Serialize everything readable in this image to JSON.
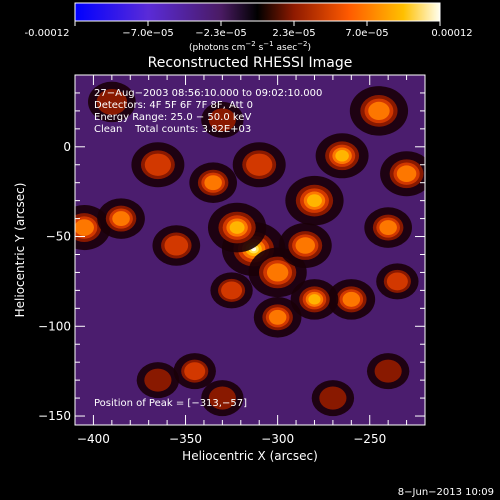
{
  "colorbar": {
    "tick_labels": [
      "-0.00012",
      "−7.0e−05",
      "−2.3e−05",
      "2.3e−05",
      "7.0e−05",
      "0.00012"
    ],
    "unit_parts": [
      "(photons cm",
      "−2",
      " s",
      "−1",
      " asec",
      "−2",
      ")"
    ]
  },
  "title": "Reconstructed RHESSI Image",
  "annotations": {
    "time_range": "27−Aug−2003 08:56:10.000 to 09:02:10.000",
    "detectors": "Detectors: 4F 5F 6F 7F 8F, Att 0",
    "energy_range": "Energy Range: 25.0 − 50.0 keV",
    "clean": "Clean    Total counts: 3.82E+03",
    "peak_position": "Position of Peak = [−313,−57]"
  },
  "axes": {
    "xlabel": "Heliocentric X (arcsec)",
    "ylabel": "Heliocentric Y (arcsec)",
    "x_tick_labels": [
      "−400",
      "−350",
      "−300",
      "−250"
    ],
    "y_tick_labels": [
      "0",
      "−50",
      "−100",
      "−150"
    ],
    "x_ticks": [
      -400,
      -350,
      -300,
      -250
    ],
    "y_ticks": [
      0,
      -50,
      -100,
      -150
    ],
    "x_range": [
      -410,
      -220
    ],
    "y_range": [
      -155,
      40
    ]
  },
  "footer_date": "8−Jun−2013 10:09",
  "image_blobs": [
    {
      "x": -313,
      "y": -57,
      "s": 1.0,
      "r": 12
    },
    {
      "x": -322,
      "y": -45,
      "s": 0.65,
      "r": 11
    },
    {
      "x": -300,
      "y": -70,
      "s": 0.55,
      "r": 11
    },
    {
      "x": -285,
      "y": -55,
      "s": 0.55,
      "r": 10
    },
    {
      "x": -280,
      "y": -30,
      "s": 0.7,
      "r": 11
    },
    {
      "x": -265,
      "y": -5,
      "s": 0.65,
      "r": 10
    },
    {
      "x": -245,
      "y": 20,
      "s": 0.6,
      "r": 11
    },
    {
      "x": -230,
      "y": -15,
      "s": 0.55,
      "r": 10
    },
    {
      "x": -240,
      "y": -45,
      "s": 0.5,
      "r": 9
    },
    {
      "x": -260,
      "y": -85,
      "s": 0.55,
      "r": 9
    },
    {
      "x": -280,
      "y": -85,
      "s": 0.65,
      "r": 9
    },
    {
      "x": -235,
      "y": -75,
      "s": 0.45,
      "r": 8
    },
    {
      "x": -300,
      "y": -95,
      "s": 0.55,
      "r": 9
    },
    {
      "x": -325,
      "y": -80,
      "s": 0.45,
      "r": 8
    },
    {
      "x": -310,
      "y": -10,
      "s": 0.45,
      "r": 10
    },
    {
      "x": -335,
      "y": -20,
      "s": 0.5,
      "r": 9
    },
    {
      "x": -365,
      "y": -10,
      "s": 0.45,
      "r": 10
    },
    {
      "x": -405,
      "y": -45,
      "s": 0.6,
      "r": 10
    },
    {
      "x": -385,
      "y": -40,
      "s": 0.5,
      "r": 9
    },
    {
      "x": -355,
      "y": -55,
      "s": 0.4,
      "r": 9
    },
    {
      "x": -390,
      "y": 25,
      "s": 0.35,
      "r": 9
    },
    {
      "x": -345,
      "y": -125,
      "s": 0.45,
      "r": 8
    },
    {
      "x": -365,
      "y": -130,
      "s": 0.35,
      "r": 8
    },
    {
      "x": -330,
      "y": -140,
      "s": 0.35,
      "r": 8
    },
    {
      "x": -270,
      "y": -140,
      "s": 0.35,
      "r": 8
    },
    {
      "x": -240,
      "y": -125,
      "s": 0.3,
      "r": 8
    },
    {
      "x": -330,
      "y": 15,
      "s": 0.35,
      "r": 8
    }
  ]
}
